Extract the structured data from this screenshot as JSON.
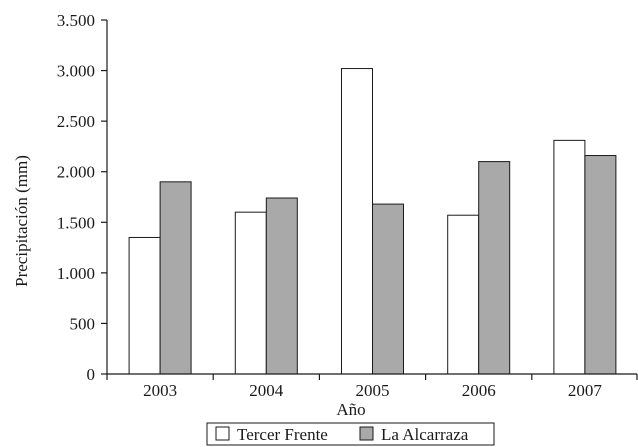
{
  "chart_data": {
    "type": "bar",
    "categories": [
      "2003",
      "2004",
      "2005",
      "2006",
      "2007"
    ],
    "series": [
      {
        "name": "Tercer Frente",
        "values": [
          1350,
          1600,
          3020,
          1570,
          2310
        ],
        "color": "#ffffff"
      },
      {
        "name": "La Alcarraza",
        "values": [
          1900,
          1740,
          1680,
          2100,
          2160
        ],
        "color": "#a9a9a9"
      }
    ],
    "xlabel": "Año",
    "ylabel": "Precipitación (mm)",
    "ylim": [
      0,
      3500
    ],
    "yticks": [
      0,
      500,
      1000,
      1500,
      2000,
      2500,
      3000,
      3500
    ],
    "ytick_labels": [
      "0",
      "500",
      "1.000",
      "1.500",
      "2.000",
      "2.500",
      "3.000",
      "3.500"
    ],
    "grid": false,
    "legend_position": "bottom-center"
  }
}
